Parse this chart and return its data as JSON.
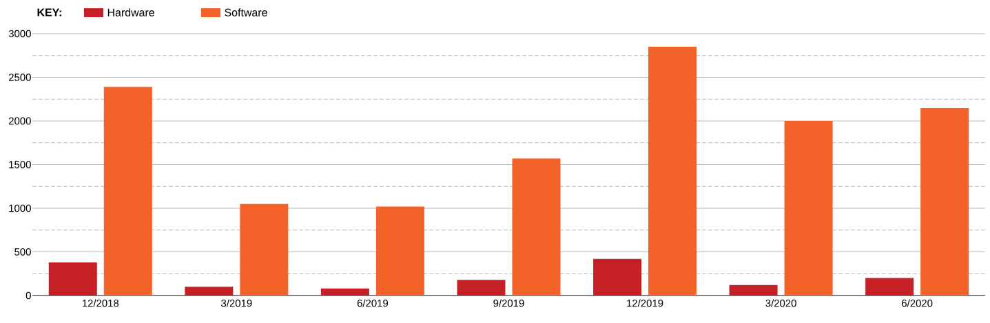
{
  "chart_data": {
    "type": "bar",
    "legend_title": "KEY:",
    "legend": "top left",
    "categories": [
      "12/2018",
      "3/2019",
      "6/2019",
      "9/2019",
      "12/2019",
      "3/2020",
      "6/2020"
    ],
    "series": [
      {
        "name": "Hardware",
        "color": "#c42026",
        "values": [
          380,
          100,
          80,
          180,
          420,
          120,
          200
        ]
      },
      {
        "name": "Software",
        "color": "#f26229",
        "values": [
          2390,
          1050,
          1020,
          1570,
          2850,
          2000,
          2150
        ]
      }
    ],
    "ylim": [
      0,
      3000
    ],
    "yticks": [
      0,
      {
        "value": 250,
        "label": null
      },
      500,
      {
        "value": 750,
        "label": null
      },
      1000,
      {
        "value": 1250,
        "label": null
      },
      1500,
      {
        "value": 1750,
        "label": null
      },
      2000,
      {
        "value": 2250,
        "label": null
      },
      2500,
      {
        "value": 2750,
        "label": null
      },
      3000
    ],
    "grid": "y"
  }
}
